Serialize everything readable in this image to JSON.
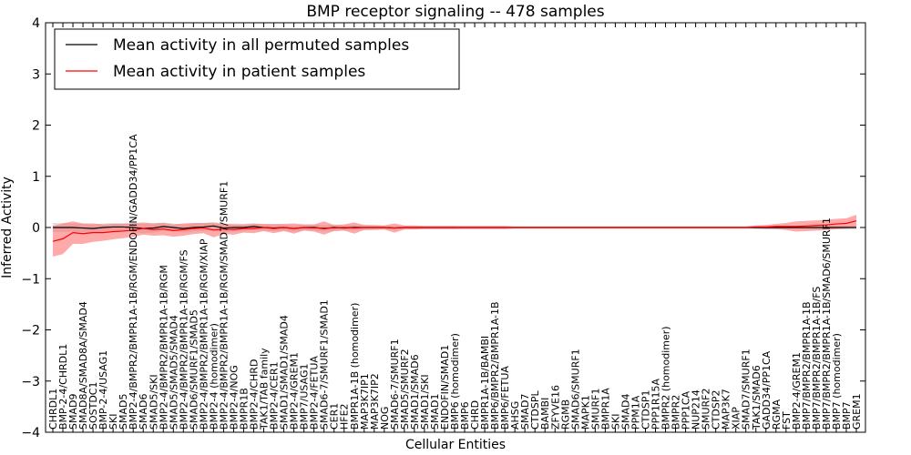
{
  "chart_data": {
    "type": "line",
    "title": "BMP receptor signaling -- 478 samples",
    "xlabel": "Cellular Entities",
    "ylabel": "Inferred Activity",
    "ylim": [
      -4,
      4
    ],
    "yticks": [
      -4,
      -3,
      -2,
      -1,
      0,
      1,
      2,
      3,
      4
    ],
    "legend_position": "top-left",
    "categories": [
      "CHRDL1",
      "BMP-2-4/CHRDL1",
      "SMAD9",
      "SMAD8A/SMAD8A/SMAD4",
      "SOSTDC1",
      "BMP-2-4/USAG1",
      "SKI",
      "SMAD5",
      "BMP2-4/BMPR2/BMPR1A-1B/RGM/ENDOFIN/GADD34/PP1CA",
      "SMAD6",
      "SMAD5/SKI",
      "BMP2-4/BMPR2/BMPR1A-1B/RGM",
      "SMAD5/SMAD5/SMAD4",
      "BMP2-4/BMPR2/BMPR1A-1B/RGM/FS",
      "SMAD6/SMURF1/SMAD5",
      "BMP2-4/BMPR2/BMPR1A-1B/RGM/XIAP",
      "BMP2-4 (homodimer)",
      "BMP2-4/BMPR2/BMPR1A-1B/RGM/SMAD7/SMURF1",
      "BMP2-4/NOG",
      "BMPR1B",
      "BMP2-4/CHRD",
      "TAK1/TAB family",
      "BMP2-4/CER1",
      "SMAD1/SMAD1/SMAD4",
      "BMP2-4/GREM1",
      "BMP7/USAG1",
      "BMP2-4/FETUA",
      "SMAD6-7/SMURF1/SMAD1",
      "CER1",
      "HFE2",
      "BMPR1A-1B (homodimer)",
      "MAP3K7IP1",
      "MAP3K7IP2",
      "NOG",
      "SMAD6-7/SMURF1",
      "SMAD5/SMURF2",
      "SMAD1/SMAD6",
      "SMAD1/SKI",
      "SMAD1",
      "ENDOFIN/SMAD1",
      "BMP6 (homodimer)",
      "BMP6",
      "CHRD",
      "BMPR1A-1B/BAMBI",
      "BMP6/BMPR2/BMPR1A-1B",
      "BMP6/FETUA",
      "AHSG",
      "SMAD7",
      "CTDSPL",
      "BAMBI",
      "ZFYVE16",
      "RGMB",
      "SMAD6/SMURF1",
      "MAPK1",
      "SMURF1",
      "BMPR1A",
      "SKI",
      "SMAD4",
      "PPM1A",
      "CTDSP1",
      "PPP1R15A",
      "BMPR2 (homodimer)",
      "BMPR2",
      "PPP1CA",
      "NUP214",
      "SMURF2",
      "CTDSP2",
      "MAP3K7",
      "XIAP",
      "SMAD7/SMURF1",
      "TAK1/SMAD6",
      "GADD34/PP1CA",
      "RGMA",
      "FST",
      "BMP2-4/GREM1",
      "BMP7/BMPR2/BMPR1A-1B",
      "BMP7/BMPR2/BMPR1A-1B/FS",
      "BMP7/BMPR2/BMPR1A-1B/SMAD6/SMURF1",
      "BMP7 (homodimer)",
      "BMP7",
      "GREM1"
    ],
    "series": [
      {
        "name": "Mean activity in all permuted samples",
        "color": "#000000",
        "band_color": "#c8c8c8",
        "values": [
          0.0,
          0.0,
          0.0,
          -0.01,
          -0.02,
          0.0,
          0.01,
          0.01,
          0.0,
          -0.02,
          -0.01,
          0.02,
          0.0,
          -0.02,
          0.0,
          0.01,
          0.03,
          -0.01,
          0.0,
          0.0,
          0.02,
          0.0,
          -0.01,
          0.0,
          -0.02,
          0.0,
          0.0,
          -0.02,
          0.0,
          -0.01,
          0.0,
          0.0,
          0.0,
          0.0,
          -0.01,
          0.0,
          0.0,
          0.0,
          0.0,
          0.0,
          0.0,
          0.0,
          0.0,
          0.0,
          0.0,
          0.0,
          0.0,
          0.0,
          0.0,
          0.0,
          0.0,
          0.0,
          0.0,
          0.0,
          0.0,
          0.0,
          0.0,
          0.0,
          0.0,
          0.0,
          0.0,
          0.0,
          0.0,
          0.0,
          0.0,
          0.0,
          0.0,
          0.0,
          0.0,
          0.0,
          0.0,
          0.0,
          0.0,
          0.0,
          0.0,
          0.0,
          0.0,
          0.0,
          0.0,
          0.0,
          0.0
        ],
        "band": [
          0.09,
          0.09,
          0.08,
          0.08,
          0.08,
          0.08,
          0.08,
          0.08,
          0.09,
          0.09,
          0.09,
          0.08,
          0.08,
          0.08,
          0.08,
          0.08,
          0.08,
          0.08,
          0.08,
          0.07,
          0.07,
          0.06,
          0.06,
          0.06,
          0.06,
          0.06,
          0.06,
          0.06,
          0.06,
          0.05,
          0.05,
          0.05,
          0.04,
          0.04,
          0.04,
          0.03,
          0.03,
          0.03,
          0.03,
          0.03,
          0.03,
          0.02,
          0.02,
          0.02,
          0.02,
          0.02,
          0.02,
          0.02,
          0.02,
          0.02,
          0.02,
          0.02,
          0.02,
          0.02,
          0.02,
          0.02,
          0.02,
          0.02,
          0.02,
          0.02,
          0.02,
          0.02,
          0.02,
          0.02,
          0.02,
          0.02,
          0.02,
          0.02,
          0.02,
          0.02,
          0.03,
          0.03,
          0.03,
          0.03,
          0.03,
          0.03,
          0.04,
          0.04,
          0.04,
          0.04,
          0.04
        ]
      },
      {
        "name": "Mean activity in patient samples",
        "color": "#ff0000",
        "band_color": "#ff6464",
        "values": [
          -0.27,
          -0.22,
          -0.1,
          -0.12,
          -0.1,
          -0.1,
          -0.08,
          -0.07,
          -0.05,
          -0.02,
          -0.04,
          -0.03,
          -0.06,
          -0.04,
          -0.02,
          -0.01,
          -0.05,
          -0.03,
          -0.04,
          -0.02,
          -0.02,
          0.0,
          -0.02,
          0.0,
          -0.02,
          0.0,
          -0.01,
          -0.01,
          -0.01,
          0.0,
          -0.01,
          0.0,
          0.0,
          0.0,
          -0.01,
          0.0,
          0.0,
          0.0,
          0.0,
          0.0,
          0.0,
          0.0,
          0.0,
          0.0,
          0.0,
          0.0,
          0.0,
          0.0,
          0.0,
          0.0,
          0.0,
          0.0,
          0.0,
          0.0,
          0.0,
          0.0,
          0.0,
          0.0,
          0.0,
          0.0,
          0.0,
          0.0,
          0.0,
          0.0,
          0.0,
          0.0,
          0.0,
          0.0,
          0.0,
          0.0,
          0.01,
          0.01,
          0.02,
          0.02,
          0.02,
          0.03,
          0.04,
          0.05,
          0.07,
          0.08,
          0.13
        ],
        "band": [
          0.3,
          0.3,
          0.22,
          0.2,
          0.18,
          0.16,
          0.15,
          0.14,
          0.13,
          0.12,
          0.12,
          0.12,
          0.12,
          0.12,
          0.11,
          0.1,
          0.14,
          0.1,
          0.1,
          0.08,
          0.09,
          0.07,
          0.09,
          0.07,
          0.1,
          0.06,
          0.07,
          0.13,
          0.06,
          0.06,
          0.11,
          0.05,
          0.05,
          0.04,
          0.09,
          0.04,
          0.04,
          0.03,
          0.03,
          0.03,
          0.03,
          0.03,
          0.03,
          0.03,
          0.03,
          0.03,
          0.02,
          0.02,
          0.02,
          0.02,
          0.02,
          0.02,
          0.02,
          0.02,
          0.02,
          0.02,
          0.02,
          0.02,
          0.02,
          0.02,
          0.02,
          0.02,
          0.02,
          0.02,
          0.02,
          0.02,
          0.02,
          0.02,
          0.02,
          0.02,
          0.03,
          0.04,
          0.05,
          0.07,
          0.1,
          0.1,
          0.1,
          0.1,
          0.1,
          0.1,
          0.12
        ]
      }
    ]
  }
}
